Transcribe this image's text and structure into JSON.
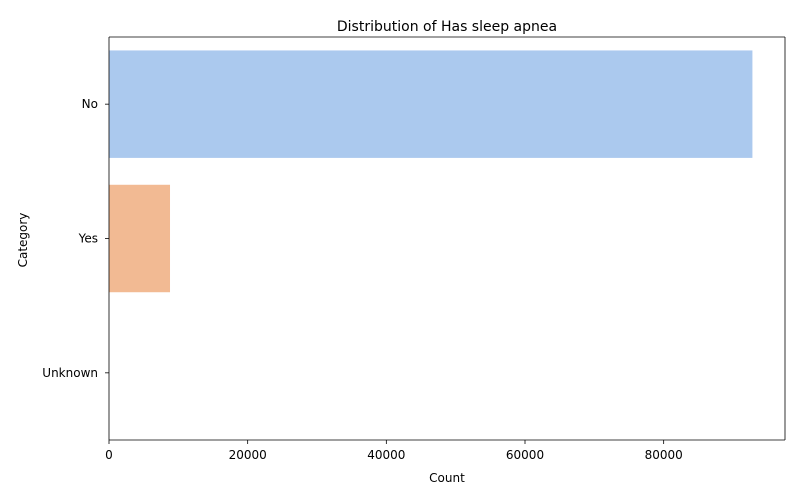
{
  "chart_data": {
    "type": "bar",
    "orientation": "horizontal",
    "title": "Distribution of Has sleep apnea",
    "xlabel": "Count",
    "ylabel": "Category",
    "categories": [
      "No",
      "Yes",
      "Unknown"
    ],
    "values": [
      92800,
      8800,
      0
    ],
    "colors": [
      "#abc9ee",
      "#f2ba93",
      "#8de5a1"
    ],
    "xlim": [
      0,
      97500
    ],
    "xticks": [
      0,
      20000,
      40000,
      60000,
      80000
    ],
    "xtick_labels": [
      "0",
      "20000",
      "40000",
      "60000",
      "80000"
    ],
    "grid": false,
    "legend": "none"
  }
}
